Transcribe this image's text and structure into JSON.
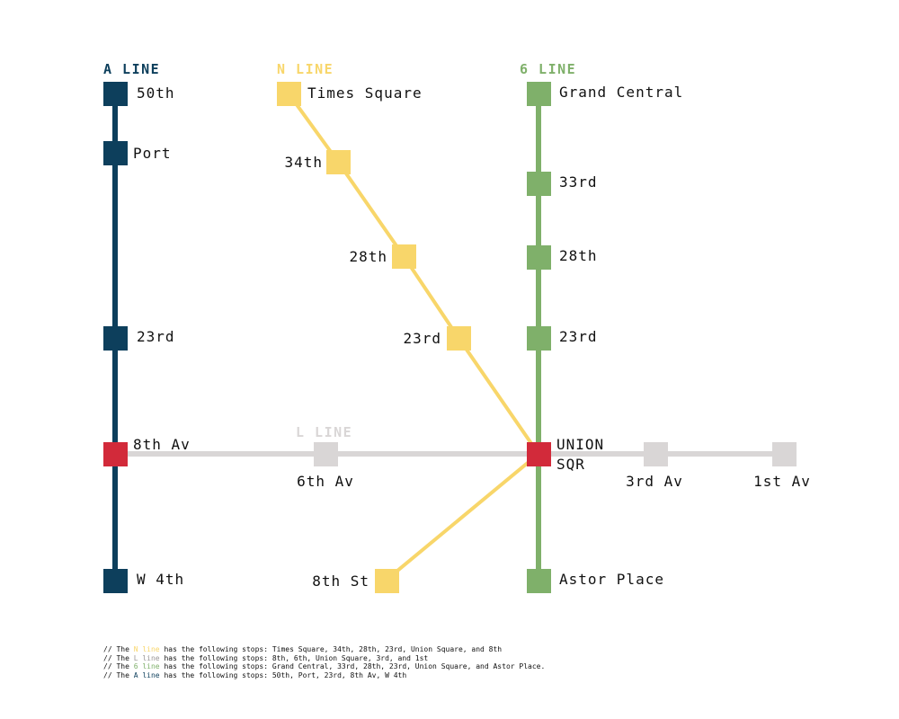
{
  "colors": {
    "a": "#0d3f5c",
    "n": "#f8d66a",
    "six": "#7fb06a",
    "l": "#d9d6d6",
    "transfer": "#d22a3a",
    "text": "#111111"
  },
  "lines": {
    "a": {
      "title": "A LINE"
    },
    "n": {
      "title": "N LINE"
    },
    "six": {
      "title": "6 LINE"
    },
    "l": {
      "title": "L LINE"
    }
  },
  "stations": {
    "a_50th": "50th",
    "a_port": "Port",
    "a_23rd": "23rd",
    "a_8th_av": "8th Av",
    "a_w4th": "W 4th",
    "n_times_square": "Times Square",
    "n_34th": "34th",
    "n_28th": "28th",
    "n_23rd": "23rd",
    "n_8th_st": "8th St",
    "six_grand_central": "Grand Central",
    "six_33rd": "33rd",
    "six_28th": "28th",
    "six_23rd": "23rd",
    "six_astor_place": "Astor Place",
    "union_sqr_1": "UNION",
    "union_sqr_2": "SQR",
    "l_6th_av": "6th Av",
    "l_3rd_av": "3rd Av",
    "l_1st_av": "1st Av"
  },
  "notes": {
    "n": {
      "prefix": "// The ",
      "colored": "N line",
      "suffix": " has the following stops: Times Square, 34th, 28th, 23rd, Union Square, and 8th"
    },
    "l": {
      "prefix": "// The ",
      "colored": "L line",
      "suffix": " has the following stops: 8th, 6th, Union Square, 3rd, and 1st"
    },
    "six": {
      "prefix": "// The ",
      "colored": "6 line",
      "suffix": " has the following stops: Grand Central, 33rd, 28th, 23rd, Union Square, and Astor Place."
    },
    "a": {
      "prefix": "// The ",
      "colored": "A line",
      "suffix": " has the following stops: 50th, Port, 23rd, 8th Av, W 4th"
    }
  }
}
